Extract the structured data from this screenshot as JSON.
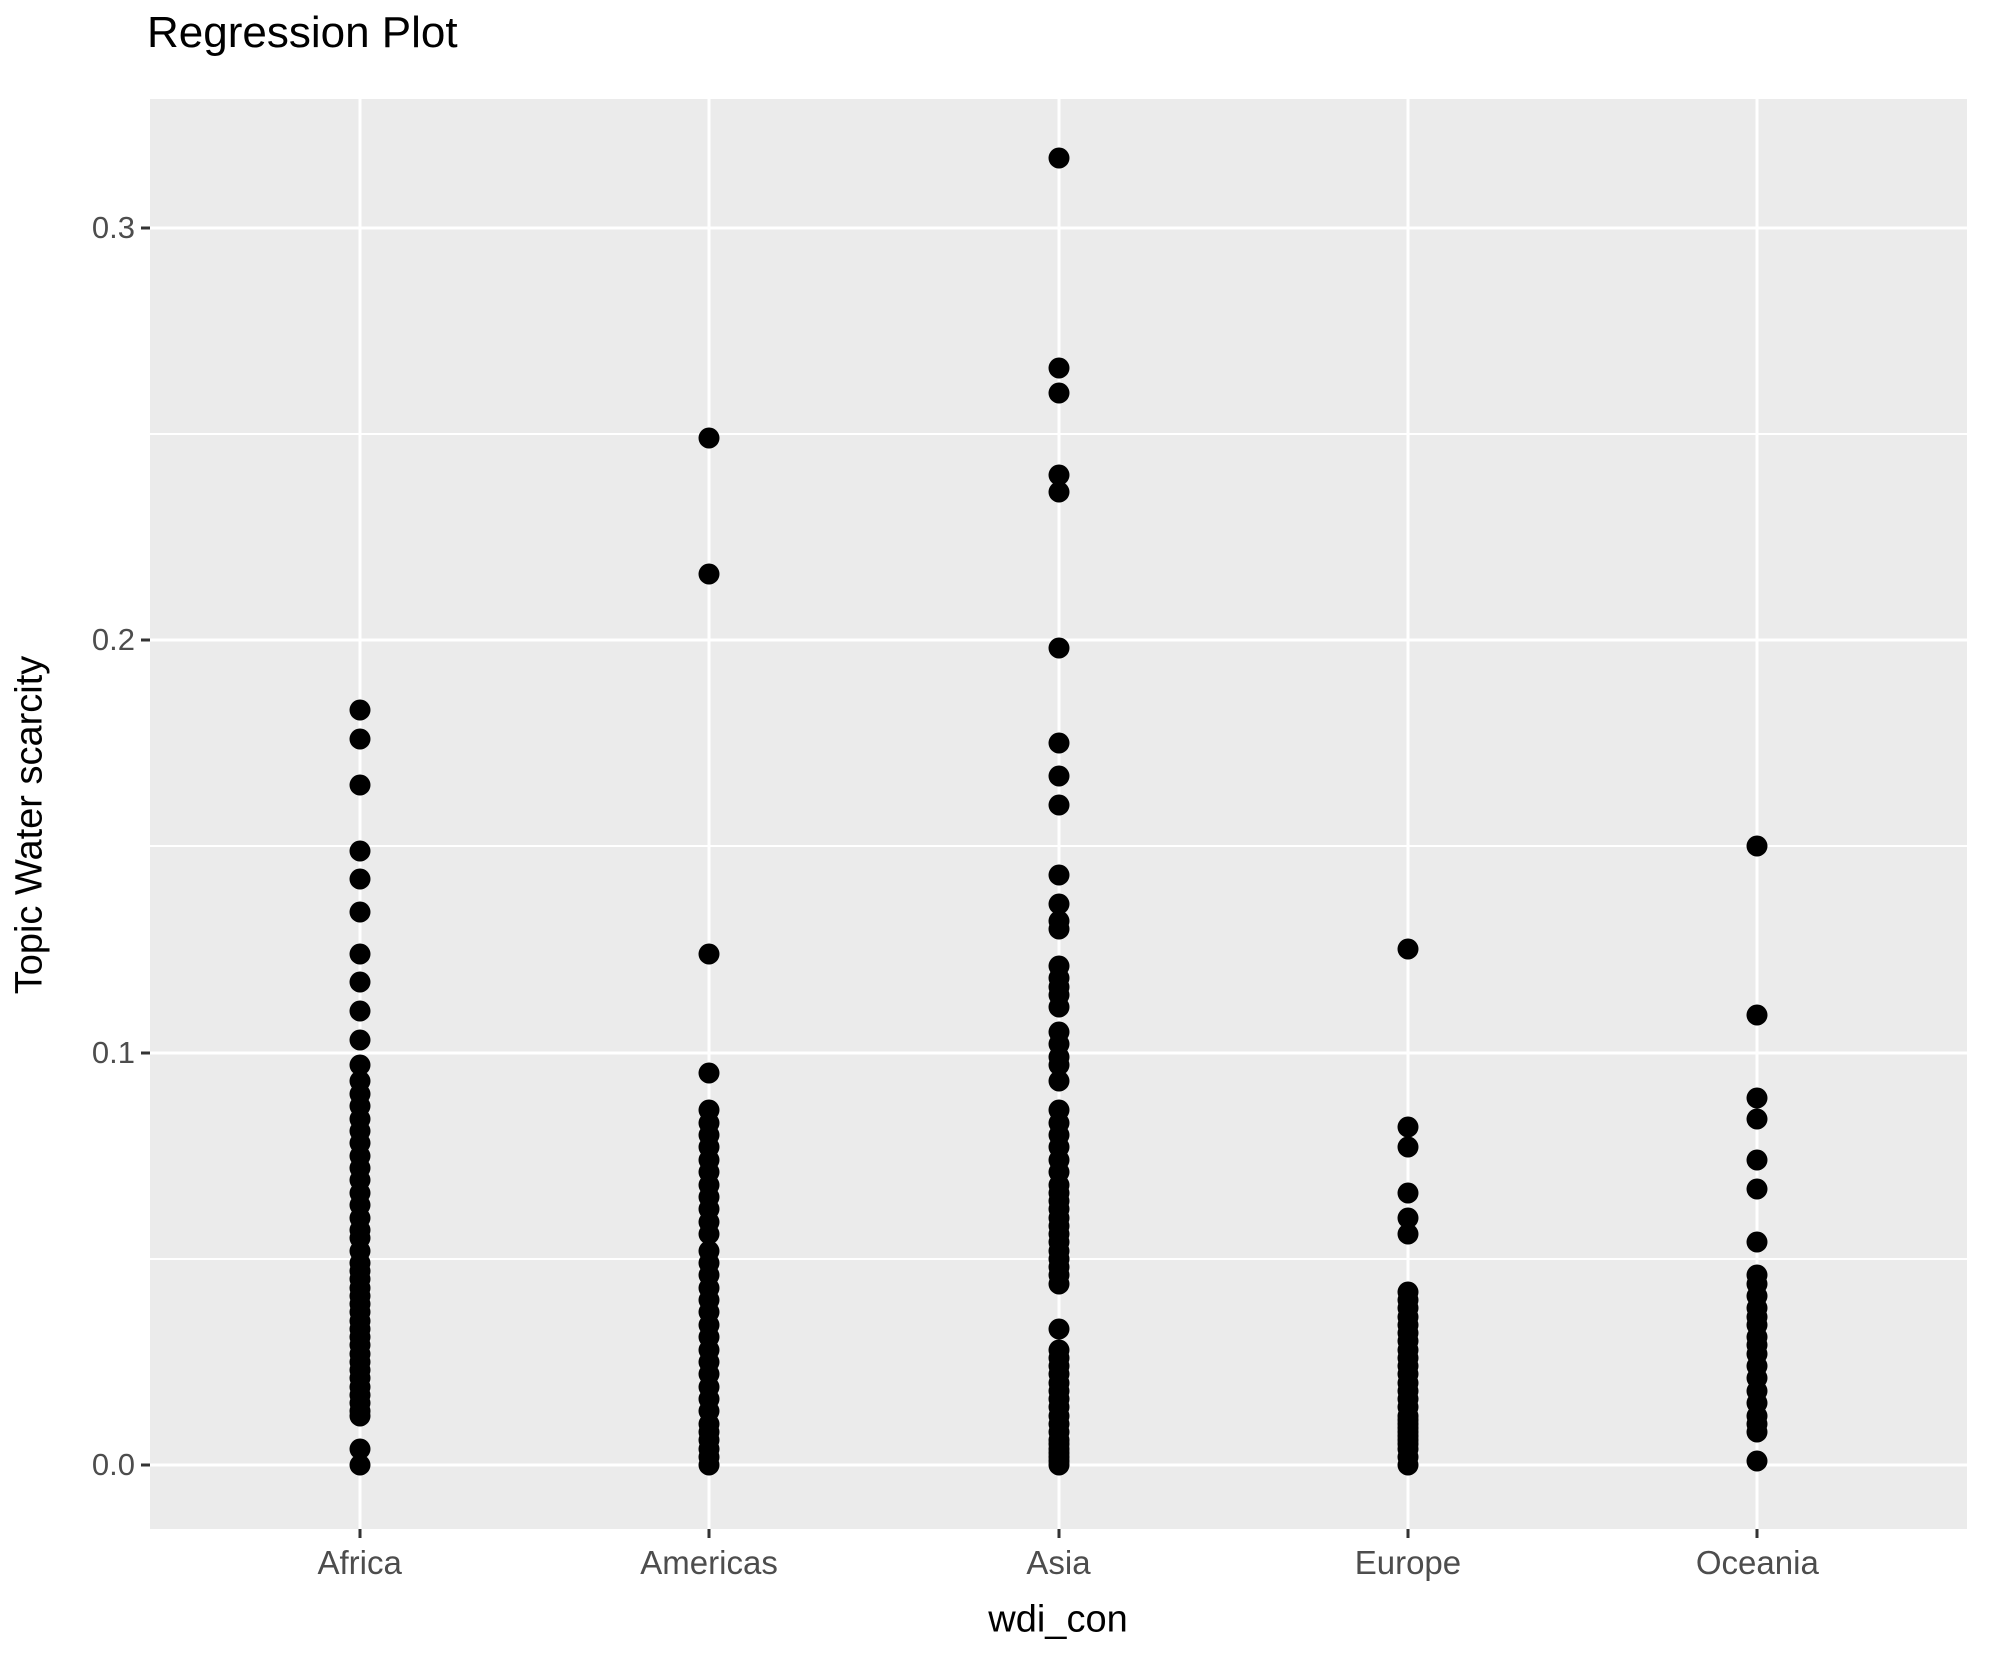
{
  "colors": {
    "background": "#FFFFFF",
    "panel_bg": "#EBEBEB",
    "gridline": "#FFFFFF",
    "point": "#000000",
    "tick_label": "#4D4D4D",
    "tick_mark": "#333333",
    "axis_title": "#000000"
  },
  "chart_data": {
    "type": "scatter",
    "title": "Regression Plot",
    "xlabel": "wdi_con",
    "ylabel": "Topic Water scarcity",
    "categories": [
      "Africa",
      "Americas",
      "Asia",
      "Europe",
      "Oceania"
    ],
    "y_ticks": [
      {
        "label": "0.0",
        "value": 0.0
      },
      {
        "label": "0.1",
        "value": 0.1
      },
      {
        "label": "0.2",
        "value": 0.2
      },
      {
        "label": "0.3",
        "value": 0.3
      }
    ],
    "y_minor_ticks": [
      0.05,
      0.15,
      0.25
    ],
    "ylim": [
      -0.0155,
      0.3312
    ],
    "grid": "on",
    "legend": "none",
    "series": [
      {
        "name": "Africa",
        "values": [
          0.183,
          0.176,
          0.165,
          0.149,
          0.142,
          0.134,
          0.124,
          0.117,
          0.11,
          0.103,
          0.097,
          0.093,
          0.09,
          0.087,
          0.084,
          0.081,
          0.078,
          0.075,
          0.072,
          0.069,
          0.066,
          0.063,
          0.06,
          0.057,
          0.055,
          0.052,
          0.049,
          0.047,
          0.045,
          0.043,
          0.041,
          0.039,
          0.037,
          0.035,
          0.033,
          0.031,
          0.029,
          0.027,
          0.025,
          0.023,
          0.021,
          0.019,
          0.017,
          0.015,
          0.013,
          0.012,
          0.004,
          0.0
        ]
      },
      {
        "name": "Americas",
        "values": [
          0.249,
          0.216,
          0.124,
          0.095,
          0.086,
          0.083,
          0.08,
          0.077,
          0.074,
          0.071,
          0.068,
          0.065,
          0.062,
          0.059,
          0.056,
          0.052,
          0.049,
          0.046,
          0.043,
          0.04,
          0.037,
          0.034,
          0.031,
          0.028,
          0.025,
          0.022,
          0.019,
          0.016,
          0.013,
          0.01,
          0.008,
          0.006,
          0.004,
          0.002,
          0.0
        ]
      },
      {
        "name": "Asia",
        "values": [
          0.317,
          0.266,
          0.26,
          0.24,
          0.236,
          0.198,
          0.175,
          0.167,
          0.16,
          0.143,
          0.136,
          0.132,
          0.13,
          0.121,
          0.118,
          0.116,
          0.114,
          0.111,
          0.105,
          0.102,
          0.099,
          0.097,
          0.093,
          0.086,
          0.083,
          0.08,
          0.077,
          0.074,
          0.071,
          0.068,
          0.066,
          0.064,
          0.062,
          0.06,
          0.058,
          0.056,
          0.054,
          0.052,
          0.05,
          0.048,
          0.046,
          0.044,
          0.033,
          0.028,
          0.026,
          0.024,
          0.022,
          0.02,
          0.018,
          0.016,
          0.014,
          0.012,
          0.01,
          0.008,
          0.006,
          0.005,
          0.004,
          0.003,
          0.002,
          0.001,
          0.0
        ]
      },
      {
        "name": "Europe",
        "values": [
          0.125,
          0.082,
          0.077,
          0.066,
          0.06,
          0.056,
          0.042,
          0.04,
          0.038,
          0.036,
          0.034,
          0.032,
          0.03,
          0.028,
          0.026,
          0.024,
          0.022,
          0.02,
          0.018,
          0.016,
          0.014,
          0.012,
          0.011,
          0.01,
          0.009,
          0.008,
          0.007,
          0.006,
          0.005,
          0.004,
          0.002,
          0.0
        ]
      },
      {
        "name": "Oceania",
        "values": [
          0.15,
          0.109,
          0.089,
          0.084,
          0.074,
          0.067,
          0.054,
          0.046,
          0.044,
          0.041,
          0.038,
          0.036,
          0.034,
          0.031,
          0.029,
          0.027,
          0.024,
          0.021,
          0.018,
          0.015,
          0.012,
          0.01,
          0.008,
          0.001
        ]
      }
    ]
  }
}
